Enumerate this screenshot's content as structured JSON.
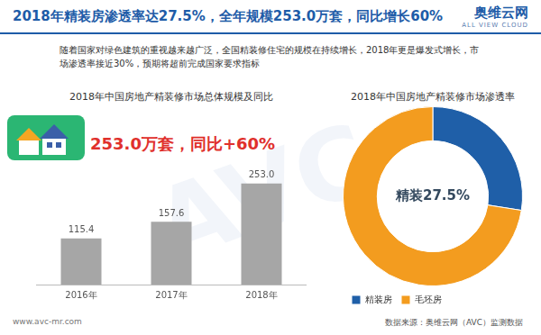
{
  "header": {
    "title": "2018年精装房渗透率达27.5%，全年规模253.0万套，同比增长60%",
    "logo": "奥维云网",
    "logo_sub": "ALL VIEW CLOUD"
  },
  "intro": "随着国家对绿色建筑的重视越来越广泛，全国精装修住宅的规模在持续增长，2018年更是爆发式增长，市场渗透率接近30%，预期将超前完成国家要求指标",
  "watermark": "AVC",
  "chart_data": [
    {
      "type": "bar",
      "title": "2018年中国房地产精装修市场总体规模及同比",
      "annotation": "253.0万套，同比+60%",
      "categories": [
        "2016年",
        "2017年",
        "2018年"
      ],
      "values": [
        115.4,
        157.6,
        253.0
      ],
      "value_labels": [
        "115.4",
        "157.6",
        "253.0"
      ],
      "color": "#a6a6a6",
      "ylim": [
        0,
        300
      ],
      "data_labels": true,
      "grid": false,
      "tick_labels": "x"
    },
    {
      "type": "doughnut",
      "title": "2018年中国房地产精装修市场渗透率",
      "annotation": "精装27.5%",
      "categories": [
        "精装房",
        "毛坯房"
      ],
      "values": [
        27.5,
        72.5
      ],
      "colors": [
        "#1f5fa8",
        "#f39c1f"
      ],
      "legend": "bottom"
    }
  ],
  "footer": {
    "url": "www.avc-mr.com",
    "source": "数据来源：奥维云网（AVC）监测数据"
  }
}
